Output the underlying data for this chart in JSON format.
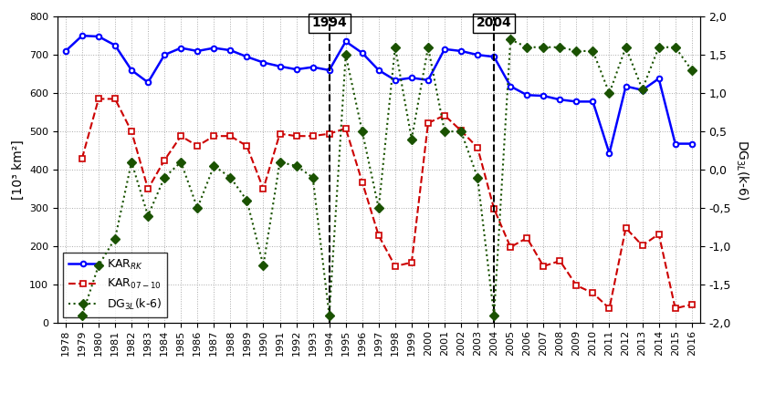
{
  "years": [
    1978,
    1979,
    1980,
    1981,
    1982,
    1983,
    1984,
    1985,
    1986,
    1987,
    1988,
    1989,
    1990,
    1991,
    1992,
    1993,
    1994,
    1995,
    1996,
    1997,
    1998,
    1999,
    2000,
    2001,
    2002,
    2003,
    2004,
    2005,
    2006,
    2007,
    2008,
    2009,
    2010,
    2011,
    2012,
    2013,
    2014,
    2015,
    2016
  ],
  "KAR_RK": [
    710,
    750,
    748,
    725,
    660,
    628,
    700,
    718,
    710,
    718,
    712,
    695,
    680,
    670,
    662,
    668,
    660,
    735,
    705,
    660,
    634,
    640,
    634,
    715,
    710,
    700,
    695,
    618,
    595,
    593,
    583,
    578,
    578,
    443,
    618,
    608,
    638,
    468,
    468
  ],
  "KAR_07_10": [
    null,
    430,
    585,
    585,
    500,
    350,
    425,
    488,
    462,
    488,
    488,
    462,
    350,
    494,
    488,
    488,
    494,
    508,
    368,
    228,
    148,
    158,
    522,
    542,
    502,
    458,
    298,
    198,
    222,
    148,
    162,
    98,
    78,
    38,
    248,
    202,
    232,
    38,
    48
  ],
  "DG_3L": [
    null,
    -1.9,
    -1.25,
    -0.9,
    0.1,
    -0.6,
    -0.1,
    0.1,
    -0.5,
    0.05,
    -0.1,
    -0.4,
    -1.25,
    0.1,
    0.05,
    -0.1,
    -1.9,
    1.5,
    0.5,
    -0.5,
    1.6,
    0.4,
    1.6,
    0.5,
    0.5,
    -0.1,
    -1.9,
    1.7,
    1.6,
    1.6,
    1.6,
    1.55,
    1.55,
    1.0,
    1.6,
    1.05,
    1.6,
    1.6,
    1.3
  ],
  "vline_years": [
    1994,
    2004
  ],
  "ylim_left": [
    0,
    800
  ],
  "ylim_right": [
    -2.0,
    2.0
  ],
  "yticks_left": [
    0,
    100,
    200,
    300,
    400,
    500,
    600,
    700,
    800
  ],
  "yticks_right": [
    -2.0,
    -1.5,
    -1.0,
    -0.5,
    0.0,
    0.5,
    1.0,
    1.5,
    2.0
  ],
  "color_KAR_RK": "#0000FF",
  "color_KAR_07_10": "#CC0000",
  "color_DG_3L": "#1A5200"
}
